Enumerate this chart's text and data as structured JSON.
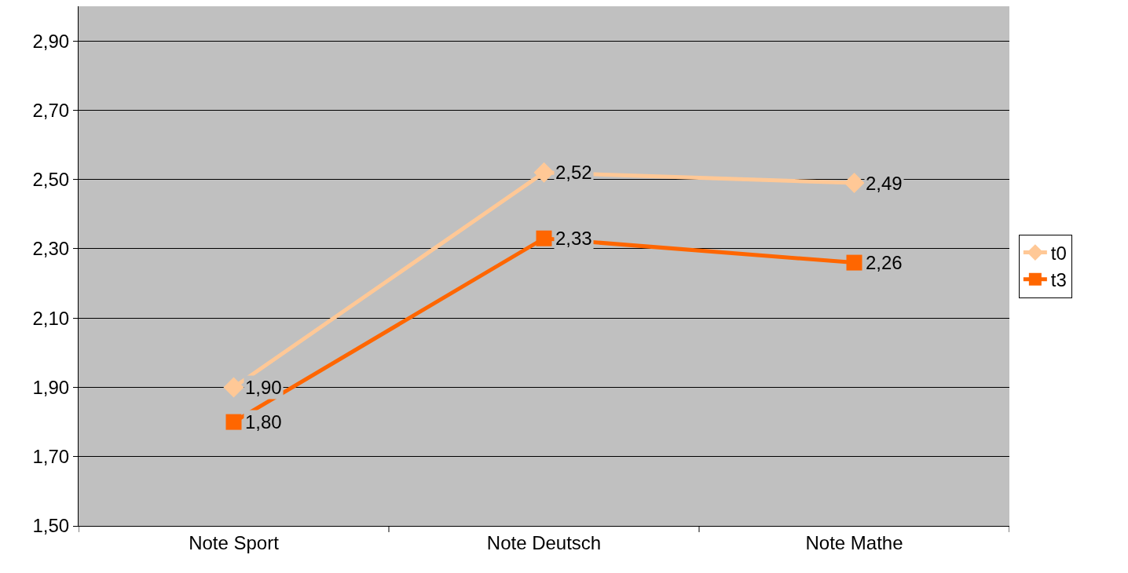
{
  "chart_data": {
    "type": "line",
    "categories": [
      "Note Sport",
      "Note Deutsch",
      "Note Mathe"
    ],
    "series": [
      {
        "name": "t0",
        "color": "#ffc896",
        "marker": "diamond",
        "values": [
          1.9,
          2.52,
          2.49
        ],
        "value_labels": [
          "1,90",
          "2,52",
          "2,49"
        ]
      },
      {
        "name": "t3",
        "color": "#ff6600",
        "marker": "square",
        "values": [
          1.8,
          2.33,
          2.26
        ],
        "value_labels": [
          "1,80",
          "2,33",
          "2,26"
        ]
      }
    ],
    "ylim": [
      1.5,
      3.0
    ],
    "yticks": [
      {
        "value": 1.5,
        "label": "1,50"
      },
      {
        "value": 1.7,
        "label": "1,70"
      },
      {
        "value": 1.9,
        "label": "1,90"
      },
      {
        "value": 2.1,
        "label": "2,10"
      },
      {
        "value": 2.3,
        "label": "2,30"
      },
      {
        "value": 2.5,
        "label": "2,50"
      },
      {
        "value": 2.7,
        "label": "2,70"
      },
      {
        "value": 2.9,
        "label": "2,90"
      }
    ],
    "grid": "y",
    "legend": "right",
    "line_style": "solid"
  }
}
